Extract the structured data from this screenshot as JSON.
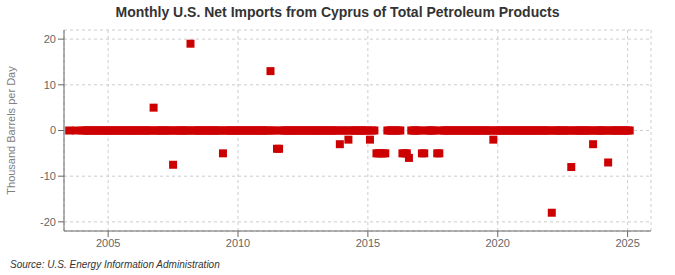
{
  "chart_data": {
    "type": "scatter",
    "title": "Monthly U.S. Net Imports from Cyprus of Total Petroleum Products",
    "y_label": "Thousand Barrels per Day",
    "annotations": [
      "Source: U.S. Energy Information Administration"
    ],
    "color": "#cc0000",
    "marker": "square",
    "grid": true,
    "xlim": [
      2003.3,
      2025.9
    ],
    "xticks": [
      2005,
      2010,
      2015,
      2020,
      2025
    ],
    "ylim": [
      -22,
      22
    ],
    "yticks": [
      -20,
      -10,
      0,
      10,
      20
    ],
    "x": [
      2003.5,
      2003.75,
      2004.0,
      2004.08,
      2004.17,
      2004.25,
      2004.33,
      2004.42,
      2004.5,
      2004.58,
      2004.67,
      2004.75,
      2004.83,
      2004.92,
      2005.0,
      2005.08,
      2005.17,
      2005.25,
      2005.33,
      2005.42,
      2005.5,
      2005.58,
      2005.67,
      2005.75,
      2005.83,
      2005.92,
      2006.0,
      2006.08,
      2006.17,
      2006.25,
      2006.33,
      2006.42,
      2006.5,
      2006.58,
      2006.67,
      2006.75,
      2006.83,
      2006.92,
      2007.0,
      2007.08,
      2007.17,
      2007.25,
      2007.33,
      2007.42,
      2007.5,
      2007.58,
      2007.67,
      2007.75,
      2007.83,
      2007.92,
      2008.0,
      2008.08,
      2008.17,
      2008.25,
      2008.33,
      2008.42,
      2008.5,
      2008.58,
      2008.67,
      2008.75,
      2008.83,
      2008.92,
      2009.0,
      2009.08,
      2009.17,
      2009.25,
      2009.33,
      2009.42,
      2009.5,
      2009.58,
      2009.67,
      2009.75,
      2009.83,
      2009.92,
      2010.0,
      2010.08,
      2010.17,
      2010.25,
      2010.33,
      2010.42,
      2010.5,
      2010.58,
      2010.67,
      2010.75,
      2010.83,
      2010.92,
      2011.0,
      2011.08,
      2011.17,
      2011.25,
      2011.33,
      2011.42,
      2011.5,
      2011.58,
      2011.67,
      2011.75,
      2011.83,
      2011.92,
      2012.0,
      2012.08,
      2012.17,
      2012.25,
      2012.33,
      2012.42,
      2012.5,
      2012.58,
      2012.67,
      2012.75,
      2012.83,
      2012.92,
      2013.0,
      2013.08,
      2013.17,
      2013.25,
      2013.33,
      2013.42,
      2013.5,
      2013.58,
      2013.67,
      2013.75,
      2013.83,
      2013.92,
      2014.0,
      2014.08,
      2014.17,
      2014.25,
      2014.33,
      2014.42,
      2014.5,
      2014.58,
      2014.67,
      2014.75,
      2014.83,
      2014.92,
      2015.0,
      2015.08,
      2015.17,
      2015.25,
      2015.33,
      2015.42,
      2015.5,
      2015.58,
      2015.67,
      2015.75,
      2015.83,
      2015.92,
      2016.0,
      2016.08,
      2016.17,
      2016.25,
      2016.33,
      2016.42,
      2016.5,
      2016.58,
      2016.67,
      2016.75,
      2016.83,
      2016.92,
      2017.0,
      2017.08,
      2017.17,
      2017.25,
      2017.33,
      2017.42,
      2017.5,
      2017.58,
      2017.67,
      2017.75,
      2017.83,
      2017.92,
      2018.0,
      2018.08,
      2018.17,
      2018.25,
      2018.33,
      2018.42,
      2018.5,
      2018.58,
      2018.67,
      2018.75,
      2018.83,
      2018.92,
      2019.0,
      2019.08,
      2019.17,
      2019.25,
      2019.33,
      2019.42,
      2019.5,
      2019.58,
      2019.67,
      2019.75,
      2019.83,
      2019.92,
      2020.0,
      2020.08,
      2020.17,
      2020.25,
      2020.33,
      2020.42,
      2020.5,
      2020.58,
      2020.67,
      2020.75,
      2020.83,
      2020.92,
      2021.0,
      2021.08,
      2021.17,
      2021.25,
      2021.33,
      2021.42,
      2021.5,
      2021.58,
      2021.67,
      2021.75,
      2021.83,
      2021.92,
      2022.0,
      2022.08,
      2022.17,
      2022.25,
      2022.33,
      2022.42,
      2022.5,
      2022.58,
      2022.67,
      2022.75,
      2022.83,
      2022.92,
      2023.0,
      2023.08,
      2023.17,
      2023.25,
      2023.33,
      2023.42,
      2023.5,
      2023.58,
      2023.67,
      2023.75,
      2023.83,
      2023.92,
      2024.0,
      2024.08,
      2024.17,
      2024.25,
      2024.33,
      2024.42,
      2024.5,
      2024.58,
      2024.67,
      2024.75,
      2024.83,
      2024.92,
      2025.0,
      2025.08
    ],
    "values": [
      0,
      0,
      0,
      0,
      0,
      0,
      0,
      0,
      0,
      0,
      0,
      0,
      0,
      0,
      0,
      0,
      0,
      0,
      0,
      0,
      0,
      0,
      0,
      0,
      0,
      0,
      0,
      0,
      0,
      0,
      0,
      0,
      0,
      0,
      0,
      5,
      0,
      0,
      0,
      0,
      0,
      0,
      0,
      0,
      -7.5,
      0,
      0,
      0,
      0,
      0,
      0,
      0,
      19,
      0,
      0,
      0,
      0,
      0,
      0,
      0,
      0,
      0,
      0,
      0,
      0,
      0,
      0,
      -5,
      0,
      0,
      0,
      0,
      0,
      0,
      0,
      0,
      0,
      0,
      0,
      0,
      0,
      0,
      0,
      0,
      0,
      0,
      0,
      0,
      0,
      13,
      0,
      0,
      -4,
      -4,
      0,
      0,
      0,
      0,
      0,
      0,
      0,
      0,
      0,
      0,
      0,
      0,
      0,
      0,
      0,
      0,
      0,
      0,
      0,
      0,
      0,
      0,
      0,
      0,
      0,
      0,
      0,
      -3,
      0,
      0,
      0,
      -2,
      0,
      0,
      0,
      0,
      0,
      0,
      0,
      0,
      0,
      -2,
      0,
      0,
      -5,
      -5,
      -5,
      -5,
      -5,
      0,
      0,
      0,
      0,
      0,
      0,
      0,
      -5,
      -5,
      -5,
      -6,
      0,
      0,
      0,
      0,
      0,
      -5,
      -5,
      0,
      0,
      0,
      0,
      0,
      -5,
      -5,
      0,
      0,
      0,
      0,
      0,
      0,
      0,
      0,
      0,
      0,
      0,
      0,
      0,
      0,
      0,
      0,
      0,
      0,
      0,
      0,
      0,
      0,
      0,
      0,
      -2,
      0,
      0,
      0,
      0,
      0,
      0,
      0,
      0,
      0,
      0,
      0,
      0,
      0,
      0,
      0,
      0,
      0,
      0,
      0,
      0,
      0,
      0,
      0,
      0,
      0,
      0,
      -18,
      0,
      0,
      0,
      0,
      0,
      0,
      0,
      0,
      -8,
      0,
      0,
      0,
      0,
      0,
      0,
      0,
      0,
      0,
      -3,
      0,
      0,
      0,
      0,
      0,
      0,
      -7,
      0,
      0,
      0,
      0,
      0,
      0,
      0,
      0,
      0,
      0
    ]
  }
}
